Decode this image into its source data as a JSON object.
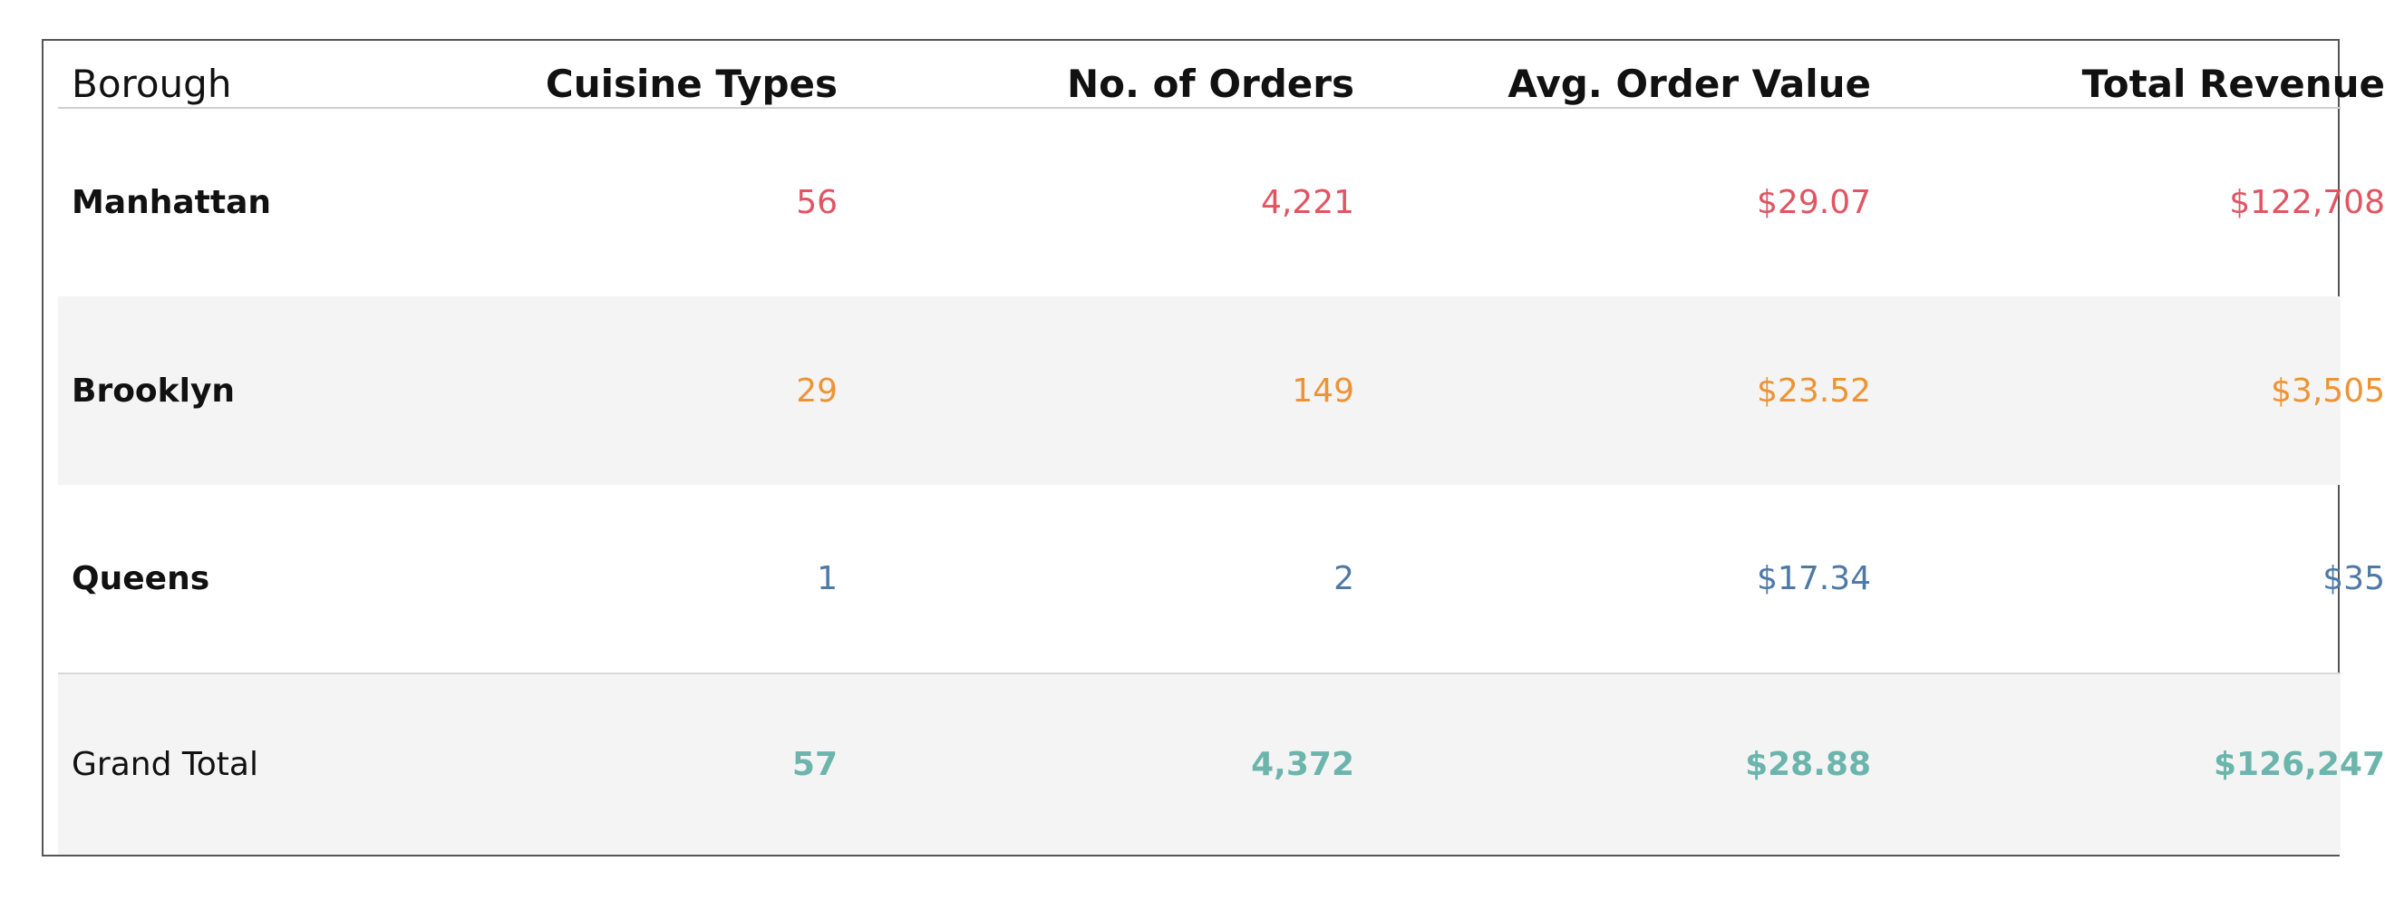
{
  "chart_data": {
    "type": "table",
    "columns": [
      "Borough",
      "Cuisine Types",
      "No. of Orders",
      "Avg. Order Value",
      "Total Revenue"
    ],
    "rows": [
      {
        "borough": "Manhattan",
        "cuisine_types": "56",
        "orders": "4,221",
        "avg_order_value": "$29.07",
        "total_revenue": "$122,708",
        "color": "#e05561"
      },
      {
        "borough": "Brooklyn",
        "cuisine_types": "29",
        "orders": "149",
        "avg_order_value": "$23.52",
        "total_revenue": "$3,505",
        "color": "#ee9334"
      },
      {
        "borough": "Queens",
        "cuisine_types": "1",
        "orders": "2",
        "avg_order_value": "$17.34",
        "total_revenue": "$35",
        "color": "#4e79a7"
      }
    ],
    "grand_total": {
      "label": "Grand Total",
      "cuisine_types": "57",
      "orders": "4,372",
      "avg_order_value": "$28.88",
      "total_revenue": "$126,247",
      "color": "#6cb5ac"
    }
  }
}
